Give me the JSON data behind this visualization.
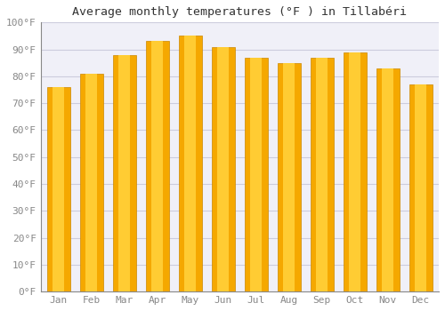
{
  "title": "Average monthly temperatures (°F ) in Tillabéri",
  "months": [
    "Jan",
    "Feb",
    "Mar",
    "Apr",
    "May",
    "Jun",
    "Jul",
    "Aug",
    "Sep",
    "Oct",
    "Nov",
    "Dec"
  ],
  "values": [
    76,
    81,
    88,
    93,
    95,
    91,
    87,
    85,
    87,
    89,
    83,
    77
  ],
  "bar_color_outer": "#F5A800",
  "bar_color_inner": "#FFCC33",
  "bar_edge_color": "#CC8800",
  "ylim": [
    0,
    100
  ],
  "yticks": [
    0,
    10,
    20,
    30,
    40,
    50,
    60,
    70,
    80,
    90,
    100
  ],
  "ytick_labels": [
    "0°F",
    "10°F",
    "20°F",
    "30°F",
    "40°F",
    "50°F",
    "60°F",
    "70°F",
    "80°F",
    "90°F",
    "100°F"
  ],
  "background_color": "#ffffff",
  "plot_bg_color": "#f0f0f8",
  "grid_color": "#ccccdd",
  "title_fontsize": 9.5,
  "tick_fontsize": 8,
  "tick_color": "#888888",
  "bar_width": 0.7,
  "inner_bar_ratio": 0.5
}
